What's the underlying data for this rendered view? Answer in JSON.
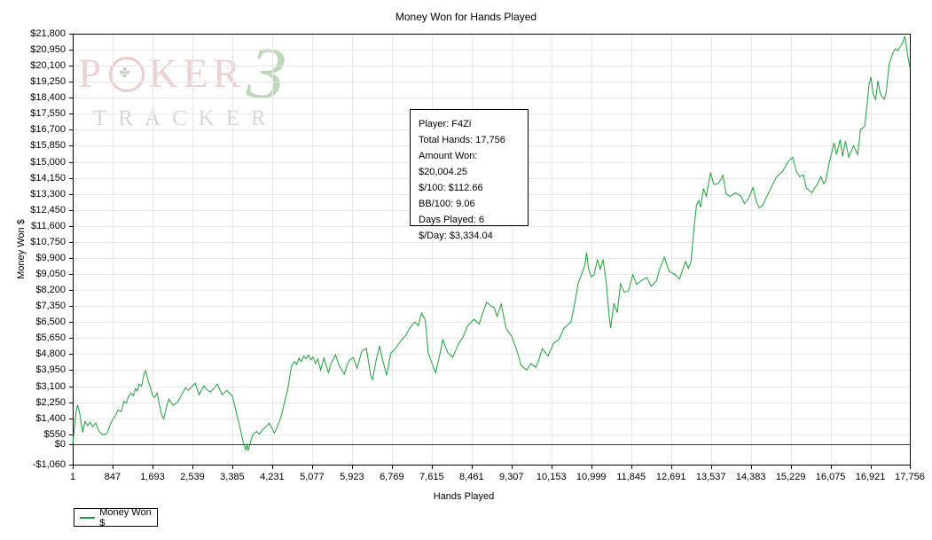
{
  "window": {
    "title": "Money Won for Hands Played"
  },
  "chart_data": {
    "type": "line",
    "title": "Money Won for Hands Played",
    "xlabel": "Hands Played",
    "ylabel": "Money Won $",
    "xlim": [
      1,
      17756
    ],
    "ylim": [
      -1060,
      21800
    ],
    "x_ticks": [
      1,
      847,
      1693,
      2539,
      3385,
      4231,
      5077,
      5923,
      6769,
      7615,
      8461,
      9307,
      10153,
      10999,
      11845,
      12691,
      13537,
      14383,
      15229,
      16075,
      16921,
      17756
    ],
    "y_ticks": [
      -1060,
      0,
      550,
      1400,
      2250,
      3100,
      3950,
      4800,
      5650,
      6500,
      7350,
      8200,
      9050,
      9900,
      10750,
      11600,
      12450,
      13300,
      14150,
      15000,
      15850,
      16700,
      17550,
      18400,
      19250,
      20100,
      20950,
      21800
    ],
    "grid": true,
    "legend_position": "bottom-left",
    "zero_line": 0,
    "series": [
      {
        "name": "Money Won $",
        "color": "#1e9e3c",
        "points": [
          [
            1,
            0
          ],
          [
            60,
            1500
          ],
          [
            100,
            2100
          ],
          [
            140,
            1800
          ],
          [
            210,
            650
          ],
          [
            260,
            1230
          ],
          [
            320,
            1000
          ],
          [
            370,
            1200
          ],
          [
            420,
            950
          ],
          [
            490,
            1150
          ],
          [
            560,
            700
          ],
          [
            640,
            520
          ],
          [
            700,
            560
          ],
          [
            730,
            610
          ],
          [
            800,
            1100
          ],
          [
            860,
            1370
          ],
          [
            920,
            1600
          ],
          [
            960,
            1840
          ],
          [
            1030,
            1750
          ],
          [
            1090,
            2310
          ],
          [
            1140,
            2200
          ],
          [
            1180,
            2550
          ],
          [
            1240,
            2740
          ],
          [
            1290,
            2600
          ],
          [
            1330,
            2970
          ],
          [
            1370,
            2850
          ],
          [
            1410,
            3210
          ],
          [
            1460,
            3100
          ],
          [
            1520,
            3820
          ],
          [
            1550,
            3920
          ],
          [
            1600,
            3400
          ],
          [
            1650,
            3020
          ],
          [
            1700,
            2600
          ],
          [
            1740,
            2500
          ],
          [
            1790,
            2740
          ],
          [
            1840,
            2100
          ],
          [
            1890,
            1560
          ],
          [
            1930,
            1370
          ],
          [
            1990,
            2000
          ],
          [
            2040,
            2410
          ],
          [
            2130,
            2080
          ],
          [
            2230,
            2270
          ],
          [
            2300,
            2600
          ],
          [
            2395,
            3020
          ],
          [
            2460,
            2880
          ],
          [
            2530,
            3100
          ],
          [
            2600,
            3260
          ],
          [
            2680,
            2640
          ],
          [
            2780,
            3120
          ],
          [
            2850,
            2900
          ],
          [
            2920,
            2790
          ],
          [
            3000,
            3000
          ],
          [
            3070,
            3210
          ],
          [
            3170,
            2640
          ],
          [
            3270,
            2880
          ],
          [
            3390,
            2550
          ],
          [
            3480,
            1610
          ],
          [
            3560,
            800
          ],
          [
            3610,
            190
          ],
          [
            3670,
            -280
          ],
          [
            3700,
            50
          ],
          [
            3720,
            -330
          ],
          [
            3780,
            200
          ],
          [
            3820,
            520
          ],
          [
            3900,
            700
          ],
          [
            3960,
            560
          ],
          [
            4030,
            800
          ],
          [
            4080,
            900
          ],
          [
            4170,
            1130
          ],
          [
            4280,
            610
          ],
          [
            4350,
            1000
          ],
          [
            4420,
            1460
          ],
          [
            4510,
            2410
          ],
          [
            4560,
            2900
          ],
          [
            4610,
            3700
          ],
          [
            4640,
            4150
          ],
          [
            4700,
            4400
          ],
          [
            4750,
            4250
          ],
          [
            4800,
            4600
          ],
          [
            4850,
            4400
          ],
          [
            4900,
            4700
          ],
          [
            4950,
            4550
          ],
          [
            5000,
            4750
          ],
          [
            5050,
            4500
          ],
          [
            5100,
            4650
          ],
          [
            5150,
            4300
          ],
          [
            5200,
            4550
          ],
          [
            5260,
            3950
          ],
          [
            5330,
            4600
          ],
          [
            5425,
            3820
          ],
          [
            5480,
            4300
          ],
          [
            5575,
            4770
          ],
          [
            5650,
            4200
          ],
          [
            5760,
            3730
          ],
          [
            5830,
            4300
          ],
          [
            5890,
            4530
          ],
          [
            5950,
            4620
          ],
          [
            6030,
            4060
          ],
          [
            6140,
            5000
          ],
          [
            6230,
            5100
          ],
          [
            6320,
            3680
          ],
          [
            6360,
            3450
          ],
          [
            6440,
            4500
          ],
          [
            6510,
            5240
          ],
          [
            6570,
            4530
          ],
          [
            6660,
            3680
          ],
          [
            6750,
            4860
          ],
          [
            6850,
            5100
          ],
          [
            6980,
            5570
          ],
          [
            7070,
            5800
          ],
          [
            7150,
            6200
          ],
          [
            7260,
            6510
          ],
          [
            7330,
            6300
          ],
          [
            7400,
            6990
          ],
          [
            7480,
            6600
          ],
          [
            7540,
            4900
          ],
          [
            7620,
            4300
          ],
          [
            7700,
            3820
          ],
          [
            7780,
            4700
          ],
          [
            7850,
            5570
          ],
          [
            7950,
            4910
          ],
          [
            8060,
            4630
          ],
          [
            8190,
            5380
          ],
          [
            8280,
            5710
          ],
          [
            8380,
            6320
          ],
          [
            8510,
            6650
          ],
          [
            8620,
            6400
          ],
          [
            8700,
            7000
          ],
          [
            8780,
            7550
          ],
          [
            8870,
            7360
          ],
          [
            8940,
            7270
          ],
          [
            9000,
            6800
          ],
          [
            9090,
            7460
          ],
          [
            9190,
            6180
          ],
          [
            9320,
            5710
          ],
          [
            9450,
            4770
          ],
          [
            9510,
            4200
          ],
          [
            9630,
            3960
          ],
          [
            9720,
            4300
          ],
          [
            9820,
            4100
          ],
          [
            9880,
            4440
          ],
          [
            9960,
            5100
          ],
          [
            10080,
            4700
          ],
          [
            10200,
            5380
          ],
          [
            10310,
            5570
          ],
          [
            10420,
            6180
          ],
          [
            10570,
            6510
          ],
          [
            10650,
            7500
          ],
          [
            10720,
            8540
          ],
          [
            10790,
            9000
          ],
          [
            10860,
            9500
          ],
          [
            10900,
            10200
          ],
          [
            10940,
            9350
          ],
          [
            11000,
            8900
          ],
          [
            11060,
            9020
          ],
          [
            11130,
            9820
          ],
          [
            11190,
            9300
          ],
          [
            11250,
            9820
          ],
          [
            11320,
            8540
          ],
          [
            11380,
            6800
          ],
          [
            11410,
            6180
          ],
          [
            11480,
            7500
          ],
          [
            11550,
            7000
          ],
          [
            11620,
            8540
          ],
          [
            11700,
            8070
          ],
          [
            11790,
            8170
          ],
          [
            11880,
            9020
          ],
          [
            11960,
            8500
          ],
          [
            12060,
            8700
          ],
          [
            12180,
            8870
          ],
          [
            12270,
            8400
          ],
          [
            12380,
            8680
          ],
          [
            12450,
            9300
          ],
          [
            12550,
            9950
          ],
          [
            12650,
            9200
          ],
          [
            12780,
            9015
          ],
          [
            12870,
            8780
          ],
          [
            13000,
            9720
          ],
          [
            13060,
            9350
          ],
          [
            13115,
            9700
          ],
          [
            13180,
            11500
          ],
          [
            13230,
            12700
          ],
          [
            13280,
            12950
          ],
          [
            13320,
            12600
          ],
          [
            13380,
            13590
          ],
          [
            13440,
            13170
          ],
          [
            13530,
            14440
          ],
          [
            13600,
            13800
          ],
          [
            13680,
            13830
          ],
          [
            13750,
            14070
          ],
          [
            13790,
            14300
          ],
          [
            13860,
            13300
          ],
          [
            13940,
            13170
          ],
          [
            14060,
            13360
          ],
          [
            14180,
            13170
          ],
          [
            14250,
            12790
          ],
          [
            14330,
            13030
          ],
          [
            14430,
            13640
          ],
          [
            14500,
            12890
          ],
          [
            14560,
            12560
          ],
          [
            14640,
            12700
          ],
          [
            14740,
            13260
          ],
          [
            14830,
            13700
          ],
          [
            14930,
            14210
          ],
          [
            15060,
            14500
          ],
          [
            15170,
            15000
          ],
          [
            15270,
            15250
          ],
          [
            15350,
            14500
          ],
          [
            15420,
            14210
          ],
          [
            15500,
            14300
          ],
          [
            15560,
            13600
          ],
          [
            15620,
            13500
          ],
          [
            15680,
            13360
          ],
          [
            15730,
            13590
          ],
          [
            15790,
            13800
          ],
          [
            15870,
            14210
          ],
          [
            15930,
            13830
          ],
          [
            15970,
            13970
          ],
          [
            16050,
            15000
          ],
          [
            16150,
            16000
          ],
          [
            16200,
            15390
          ],
          [
            16280,
            16190
          ],
          [
            16330,
            15290
          ],
          [
            16390,
            16100
          ],
          [
            16460,
            15250
          ],
          [
            16560,
            15860
          ],
          [
            16650,
            15390
          ],
          [
            16710,
            16710
          ],
          [
            16760,
            16800
          ],
          [
            16800,
            16900
          ],
          [
            16840,
            17840
          ],
          [
            16890,
            19100
          ],
          [
            16930,
            19490
          ],
          [
            16980,
            18600
          ],
          [
            17030,
            18310
          ],
          [
            17080,
            19310
          ],
          [
            17130,
            18600
          ],
          [
            17210,
            18310
          ],
          [
            17250,
            18600
          ],
          [
            17320,
            20200
          ],
          [
            17400,
            20820
          ],
          [
            17450,
            21000
          ],
          [
            17500,
            20900
          ],
          [
            17550,
            21100
          ],
          [
            17600,
            21290
          ],
          [
            17650,
            21670
          ],
          [
            17700,
            20820
          ],
          [
            17756,
            20004
          ]
        ]
      }
    ]
  },
  "info_box": {
    "lines": [
      "Player: F4Zi",
      "Total Hands: 17,756",
      "Amount Won: $20,004.25",
      "$/100: $112.66",
      "BB/100: 9.06",
      "Days Played: 6",
      "$/Day: $3,334.04"
    ]
  },
  "legend": {
    "label": "Money Won $",
    "color": "#1e9e3c"
  },
  "watermark": {
    "brand_pre": "P",
    "o_symbol": "✤",
    "brand_post": "KER",
    "numeral": "3",
    "brand_sub": "TRACKER"
  },
  "colors": {
    "line": "#1e9e3c",
    "grid": "#e8e8e8",
    "axis": "#000000",
    "zero_line": "#404040",
    "background": "#ffffff"
  }
}
